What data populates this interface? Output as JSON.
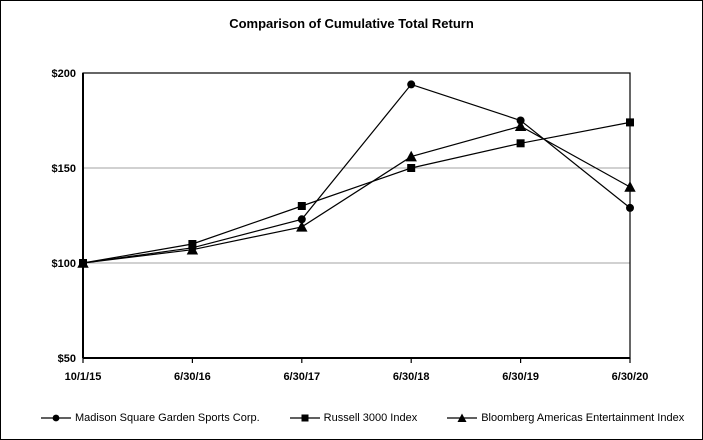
{
  "chart_data": {
    "type": "line",
    "title": "Comparison of Cumulative Total Return",
    "categories": [
      "10/1/15",
      "6/30/16",
      "6/30/17",
      "6/30/18",
      "6/30/19",
      "6/30/20"
    ],
    "series": [
      {
        "name": "Madison Square Garden Sports Corp.",
        "marker": "circle",
        "values": [
          100,
          108,
          123,
          194,
          175,
          129
        ]
      },
      {
        "name": "Russell 3000 Index",
        "marker": "square",
        "values": [
          100,
          110,
          130,
          150,
          163,
          174
        ]
      },
      {
        "name": "Bloomberg Americas Entertainment Index",
        "marker": "triangle",
        "values": [
          100,
          107,
          119,
          156,
          172,
          140
        ]
      }
    ],
    "ylim": [
      50,
      200
    ],
    "y_ticks": [
      {
        "value": 200,
        "label": "$200"
      },
      {
        "value": 150,
        "label": "$150"
      },
      {
        "value": 100,
        "label": "$100"
      },
      {
        "value": 50,
        "label": "$50"
      }
    ],
    "gridline_values": [
      100,
      150
    ],
    "xlabel": "",
    "ylabel": "",
    "legend_position": "bottom",
    "grid": "horizontal",
    "colors": {
      "line": "#000000",
      "marker": "#000000",
      "grid": "#a3a3a3",
      "border": "#000000",
      "text": "#000000",
      "background": "#ffffff"
    }
  }
}
